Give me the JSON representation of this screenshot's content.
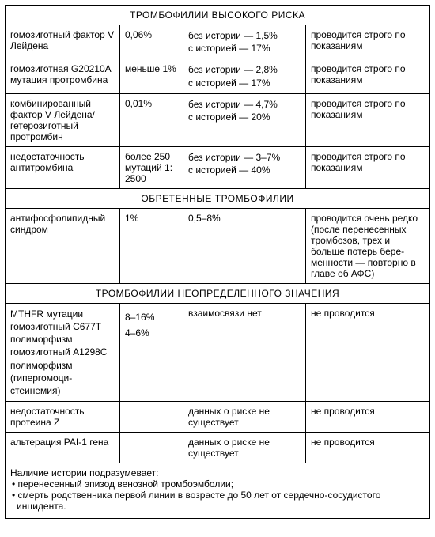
{
  "sections": {
    "high": "ТРОМБОФИЛИИ ВЫСОКОГО РИСКА",
    "acquired": "ОБРЕТЕННЫЕ ТРОМБОФИЛИИ",
    "undef": "ТРОМБОФИЛИИ НЕОПРЕДЕЛЕННОГО ЗНАЧЕНИЯ"
  },
  "high_rows": [
    {
      "name": "гомозиготный фактор V Лейдена",
      "freq": "0,06%",
      "risk_no": "без истории — 1,5%",
      "risk_yes": "с историей — 17%",
      "rec": "проводится строго по показаниям"
    },
    {
      "name": "гомозиготная G20210A мутация протромбина",
      "freq": "меньше 1%",
      "risk_no": "без истории — 2,8%",
      "risk_yes": "с историей — 17%",
      "rec": "проводится строго по показаниям"
    },
    {
      "name": "комбинированный фактор V Лейдена/ гетерозиготный протромбин",
      "freq": "0,01%",
      "risk_no": "без истории — 4,7%",
      "risk_yes": "с историей — 20%",
      "rec": "проводится строго по показаниям"
    },
    {
      "name": "недостаточность антитромбина",
      "freq": "более 250 мутаций 1: 2500",
      "risk_no": "без истории — 3–7%",
      "risk_yes": "с историей — 40%",
      "rec": "проводится строго по показаниям"
    }
  ],
  "acq_rows": [
    {
      "name": "антифосфолипидный синдром",
      "freq": "1%",
      "risk": "0,5–8%",
      "rec": "проводится очень ред­ко (после перенесен­ных тромбозов, трех и больше потерь бере­менности — повторно в главе об АФС)"
    }
  ],
  "undef_rows": [
    {
      "name_l1": "MTHFR мутации",
      "name_l2": "гомозиготный C677T полиморфизм",
      "name_l3": "гомозиготный A1298C полимор­физм (гипергомоци­стеинемия)",
      "freq_l1": "",
      "freq_l2": "8–16%",
      "freq_l3": "4–6%",
      "risk": "взаимосвязи нет",
      "rec": "не проводится"
    },
    {
      "name": "недостаточность протеина Z",
      "freq": "",
      "risk": "данных о риске не существует",
      "rec": "не проводится"
    },
    {
      "name": "альтерация PAI-1 гена",
      "freq": "",
      "risk": "данных о риске не существует",
      "rec": "не проводится"
    }
  ],
  "footnote": {
    "intro": "Наличие истории подразумевает:",
    "b1": "• перенесенный эпизод венозной тромбоэмболии;",
    "b2": "• смерть родственника первой линии в возрасте до 50 лет от сердечно-сосудисто­го инцидента."
  }
}
